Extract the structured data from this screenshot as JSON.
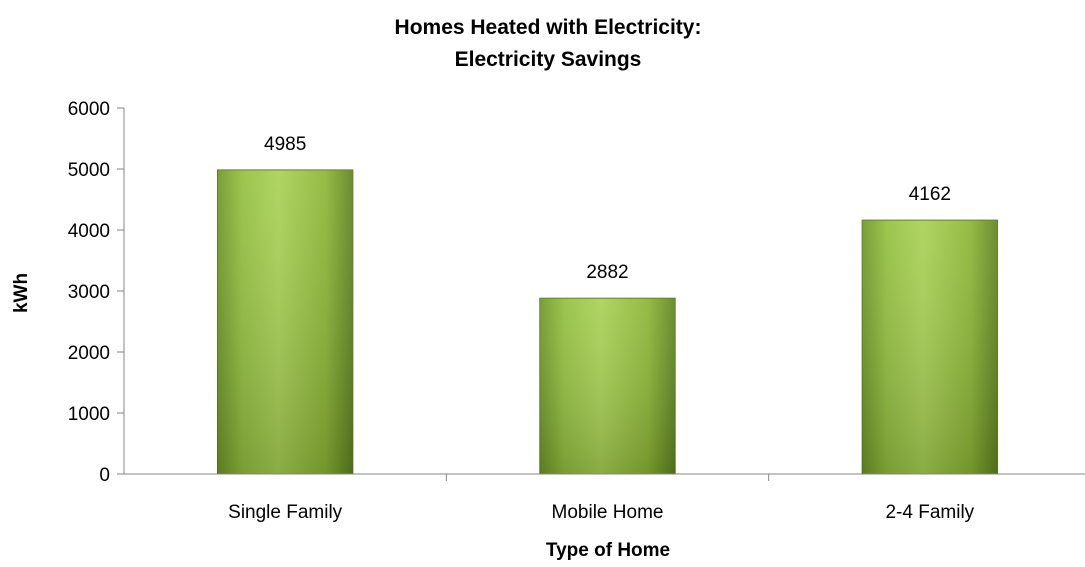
{
  "chart_data": {
    "type": "bar",
    "title_lines": [
      "Homes Heated with Electricity:",
      "Electricity Savings"
    ],
    "xlabel": "Type of Home",
    "ylabel": "kWh",
    "categories": [
      "Single Family",
      "Mobile Home",
      "2-4 Family"
    ],
    "values": [
      4985,
      2882,
      4162
    ],
    "data_labels": [
      "4985",
      "2882",
      "4162"
    ],
    "ylim": [
      0,
      6000
    ],
    "yticks": [
      0,
      1000,
      2000,
      3000,
      4000,
      5000,
      6000
    ],
    "grid": false,
    "legend": "none",
    "bar_color": "#8db83a"
  }
}
